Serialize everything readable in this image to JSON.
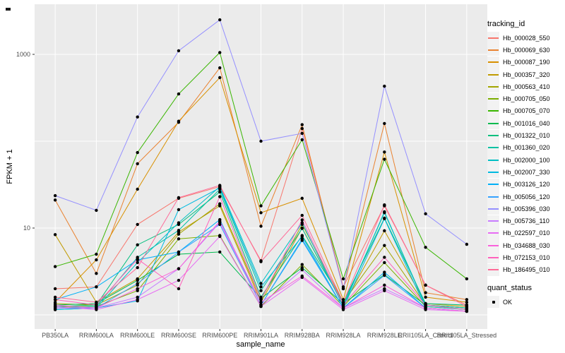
{
  "colors": {
    "panel_bg": "#EBEBEB",
    "grid": "#FFFFFF",
    "tick_mark": "#333333",
    "tick_text": "#4D4D4D",
    "point": "#000000",
    "legend_key_bg": "#F2F2F2"
  },
  "legend": {
    "color_title": "tracking_id",
    "shape_title": "quant_status",
    "shape_items": [
      {
        "label": "OK"
      }
    ]
  },
  "chart_data": {
    "type": "line",
    "title": "",
    "xlabel": "sample_name",
    "ylabel": "FPKM + 1",
    "y_scale": "log10",
    "ylim": [
      1,
      3800
    ],
    "grid": true,
    "legend_position": "right",
    "y_ticks": [
      {
        "value": 10,
        "label": "10"
      },
      {
        "value": 1000,
        "label": "1000"
      }
    ],
    "y_gridline_values": [
      1,
      10,
      100,
      1000
    ],
    "categories": [
      "PB350LA",
      "RRIM600LA",
      "RRIM600LE",
      "RRIM600SE",
      "RRIM600PE",
      "RRIM901LA",
      "RRIM928BA",
      "RRIM928LA",
      "RRIM928LE",
      "RRII105LA_Control",
      "RRII105LA_Stressed"
    ],
    "point_shape": "OK",
    "series": [
      {
        "name": "Hb_000028_550",
        "color": "#F8766D",
        "values": [
          2.0,
          2.1,
          11,
          22,
          30,
          4.2,
          140,
          2.1,
          18,
          2.2,
          1.3
        ]
      },
      {
        "name": "Hb_000069_630",
        "color": "#EA8331",
        "values": [
          21,
          3.0,
          55,
          165,
          700,
          10.5,
          155,
          2.0,
          160,
          1.8,
          1.5
        ]
      },
      {
        "name": "Hb_000087_190",
        "color": "#D89000",
        "values": [
          1.4,
          4.3,
          28,
          170,
          540,
          15,
          22,
          1.5,
          75,
          1.6,
          1.4
        ]
      },
      {
        "name": "Hb_000357_320",
        "color": "#C09B00",
        "values": [
          8.4,
          1.4,
          2.6,
          9.0,
          18,
          1.4,
          10,
          1.3,
          9.3,
          1.35,
          1.25
        ]
      },
      {
        "name": "Hb_000563_410",
        "color": "#A3A500",
        "values": [
          1.35,
          1.3,
          2.2,
          8.5,
          19,
          1.5,
          11,
          1.4,
          6.3,
          1.3,
          1.2
        ]
      },
      {
        "name": "Hb_000705_050",
        "color": "#7CAE00",
        "values": [
          1.25,
          1.25,
          1.9,
          7.5,
          8.2,
          1.25,
          3.8,
          1.25,
          4.0,
          1.25,
          1.15
        ]
      },
      {
        "name": "Hb_000705_070",
        "color": "#39B600",
        "values": [
          3.6,
          5.0,
          74,
          350,
          1050,
          18,
          104,
          2.6,
          62,
          6.0,
          2.6
        ]
      },
      {
        "name": "Hb_001016_040",
        "color": "#00BB4E",
        "values": [
          1.3,
          1.35,
          2.5,
          5.0,
          5.3,
          1.55,
          3.5,
          1.35,
          2.9,
          1.3,
          1.2
        ]
      },
      {
        "name": "Hb_001322_010",
        "color": "#00BF7D",
        "values": [
          1.25,
          1.3,
          6.4,
          11,
          26,
          1.6,
          8.2,
          1.4,
          13,
          1.35,
          1.3
        ]
      },
      {
        "name": "Hb_001360_020",
        "color": "#00C1A3",
        "values": [
          1.2,
          1.25,
          4.6,
          9.4,
          28,
          1.9,
          9.9,
          1.3,
          15,
          1.3,
          1.2
        ]
      },
      {
        "name": "Hb_002000_100",
        "color": "#00BFC4",
        "values": [
          1.15,
          1.2,
          4.0,
          11.5,
          30,
          2.3,
          11.5,
          1.25,
          15.4,
          1.25,
          1.15
        ]
      },
      {
        "name": "Hb_002007_330",
        "color": "#00BAE0",
        "values": [
          1.15,
          1.2,
          1.45,
          16.3,
          29,
          2.1,
          8.0,
          1.2,
          12.8,
          1.2,
          1.1
        ]
      },
      {
        "name": "Hb_003126_120",
        "color": "#00B0F6",
        "values": [
          1.5,
          2.1,
          4.3,
          5.3,
          12.5,
          1.3,
          7.2,
          1.2,
          3.1,
          1.2,
          1.1
        ]
      },
      {
        "name": "Hb_005056_120",
        "color": "#35A2FF",
        "values": [
          1.2,
          1.2,
          2.3,
          5.3,
          11,
          1.3,
          7.5,
          1.2,
          2.85,
          1.2,
          1.1
        ]
      },
      {
        "name": "Hb_005396_030",
        "color": "#9590FF",
        "values": [
          23.6,
          16,
          190,
          1100,
          2500,
          100,
          123,
          2.0,
          430,
          14.6,
          6.5
        ]
      },
      {
        "name": "Hb_005736_110",
        "color": "#C77CFF",
        "values": [
          1.2,
          1.2,
          1.6,
          3.4,
          11.6,
          1.3,
          3.3,
          1.2,
          2.0,
          1.2,
          1.1
        ]
      },
      {
        "name": "Hb_022597_010",
        "color": "#E76BF3",
        "values": [
          1.25,
          1.15,
          1.5,
          2.5,
          8.0,
          1.25,
          2.7,
          1.15,
          1.9,
          1.15,
          1.1
        ]
      },
      {
        "name": "Hb_034688_030",
        "color": "#FA62DB",
        "values": [
          1.3,
          1.2,
          2.0,
          3.4,
          12,
          1.4,
          2.8,
          1.2,
          2.2,
          1.2,
          1.1
        ]
      },
      {
        "name": "Hb_072153_010",
        "color": "#FF62BC",
        "values": [
          1.5,
          1.3,
          4.4,
          2.0,
          23,
          1.5,
          12.4,
          1.3,
          4.6,
          1.3,
          1.15
        ]
      },
      {
        "name": "Hb_186495_010",
        "color": "#FF6A98",
        "values": [
          1.6,
          1.4,
          3.5,
          22.4,
          31,
          4.1,
          14,
          1.4,
          18.5,
          2.2,
          1.25
        ]
      }
    ]
  }
}
